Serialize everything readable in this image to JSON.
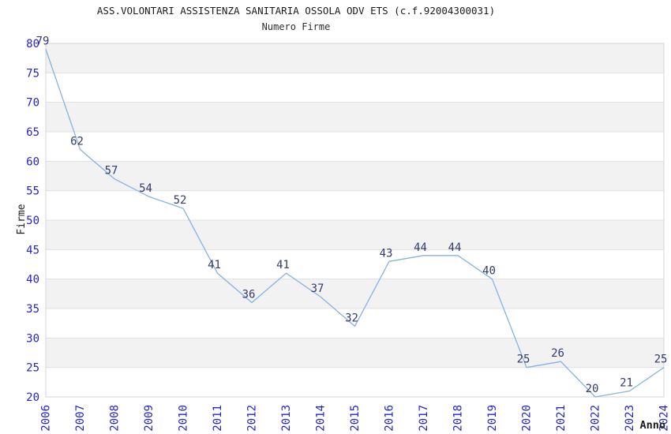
{
  "header": {
    "title": "ASS.VOLONTARI ASSISTENZA SANITARIA OSSOLA ODV ETS (c.f.92004300031)",
    "subtitle": "Numero Firme"
  },
  "chart_data": {
    "type": "line",
    "title": "ASS.VOLONTARI ASSISTENZA SANITARIA OSSOLA ODV ETS (c.f.92004300031)",
    "subtitle": "Numero Firme",
    "xlabel": "Anno",
    "ylabel": "Firme",
    "categories": [
      "2006",
      "2007",
      "2008",
      "2009",
      "2010",
      "2011",
      "2012",
      "2013",
      "2014",
      "2015",
      "2016",
      "2017",
      "2018",
      "2019",
      "2020",
      "2021",
      "2022",
      "2023",
      "2024"
    ],
    "series": [
      {
        "name": "Numero Firme",
        "values": [
          79,
          62,
          57,
          54,
          52,
          41,
          36,
          41,
          37,
          32,
          43,
          44,
          44,
          40,
          25,
          26,
          20,
          21,
          25
        ]
      }
    ],
    "point_labels": true,
    "ylim": [
      20,
      80
    ],
    "yticks": [
      20,
      25,
      30,
      35,
      40,
      45,
      50,
      55,
      60,
      65,
      70,
      75,
      80
    ],
    "grid": "horizontal-bands-alternating",
    "legend": "none",
    "colors": {
      "line": "#85b2e5",
      "point_label": "#333a6e",
      "tick_label": "#2424cb",
      "band_fill": "#f2f2f2",
      "gridline": "#e0e0e0",
      "plot_border": "#d4d4d4",
      "title_text": "#1c1c1c",
      "axis_title": "#1c1c1c",
      "background": "#ffffff"
    }
  }
}
